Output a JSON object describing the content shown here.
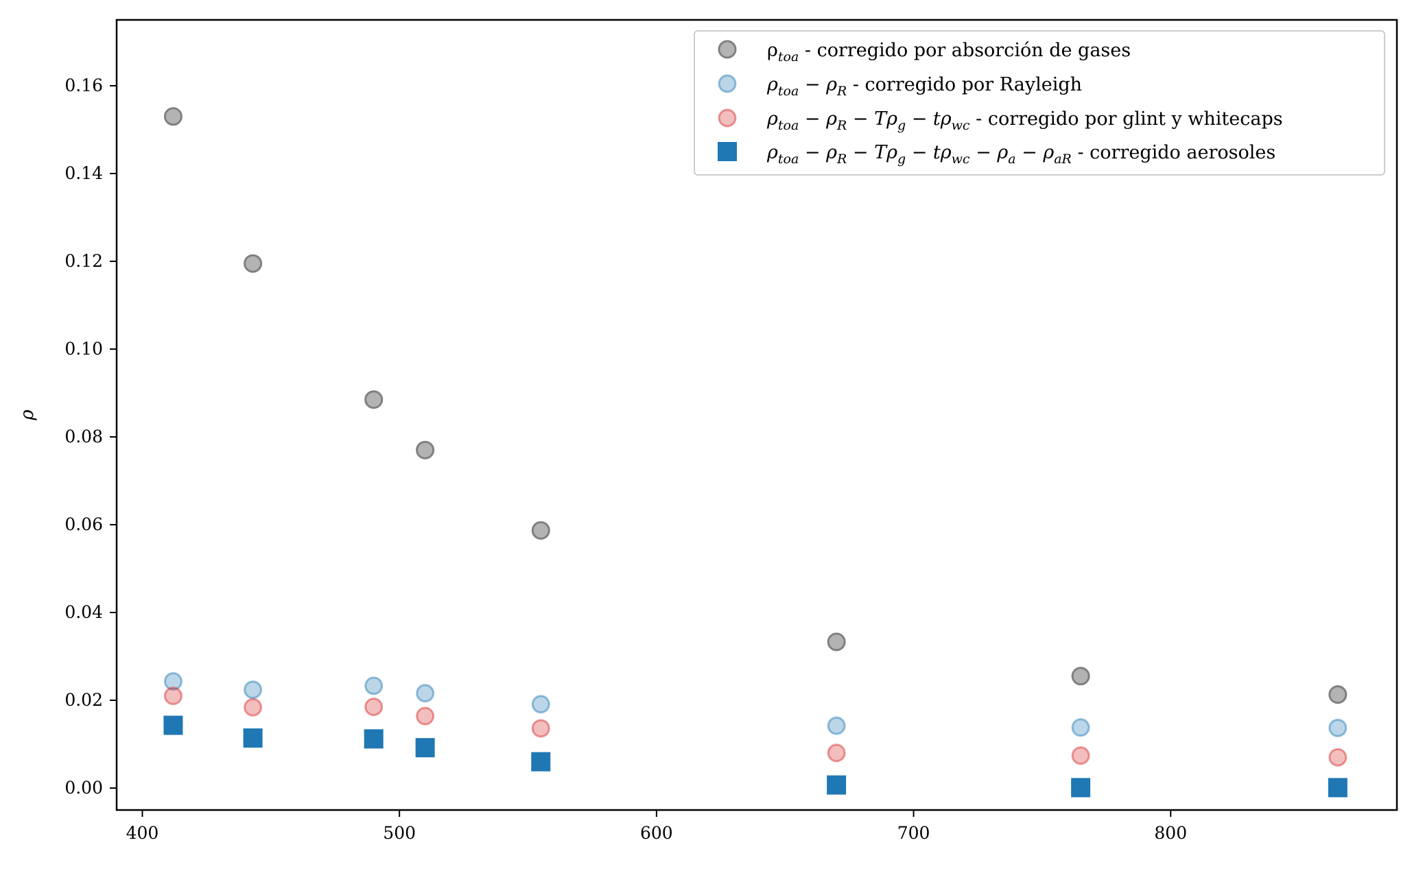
{
  "chart_data": {
    "type": "scatter",
    "title": "",
    "xlabel": "",
    "ylabel": "ρ",
    "xlim": [
      390,
      888
    ],
    "ylim": [
      -0.005,
      0.175
    ],
    "grid": false,
    "legend_position": "top-right",
    "x_ticks": [
      400,
      500,
      600,
      700,
      800
    ],
    "y_ticks": [
      0.0,
      0.02,
      0.04,
      0.06,
      0.08,
      0.1,
      0.12,
      0.14,
      0.16
    ],
    "x": [
      412,
      443,
      490,
      510,
      555,
      670,
      765,
      865
    ],
    "series": [
      {
        "name": "ρtoa - corregido por absorción de gases",
        "marker": "circle",
        "color": "#808080",
        "values": [
          0.153,
          0.1195,
          0.0885,
          0.077,
          0.0587,
          0.0333,
          0.0255,
          0.0213
        ]
      },
      {
        "name": "ρtoa − ρR - corregido por Rayleigh",
        "marker": "circle",
        "color": "#1f77b4",
        "values": [
          0.0243,
          0.0224,
          0.0233,
          0.0216,
          0.0191,
          0.0142,
          0.0138,
          0.0137
        ]
      },
      {
        "name": "ρtoa − ρR − Tρg − tρwc - corregido por glint y whitecaps",
        "marker": "circle",
        "color": "#d62728",
        "values": [
          0.021,
          0.0184,
          0.0185,
          0.0164,
          0.0136,
          0.008,
          0.0074,
          0.007
        ]
      },
      {
        "name": "ρtoa − ρR − Tρg − tρwc − ρa − ρaR - corregido aerosoles",
        "marker": "square",
        "color": "#1f77b4",
        "values": [
          0.0143,
          0.0114,
          0.0112,
          0.0092,
          0.006,
          0.0007,
          0.0001,
          0.0001
        ]
      }
    ]
  },
  "legend": {
    "entries": [
      {
        "parts": [
          [
            "ρ",
            "",
            false
          ],
          [
            "toa",
            "sub",
            true
          ],
          [
            " - corregido por absorción de gases",
            "",
            false
          ]
        ]
      },
      {
        "parts": [
          [
            "ρ",
            "",
            true
          ],
          [
            "toa",
            "sub",
            true
          ],
          [
            " − ",
            "",
            false
          ],
          [
            "ρ",
            "",
            true
          ],
          [
            "R",
            "sub",
            true
          ],
          [
            " - corregido por Rayleigh",
            "",
            false
          ]
        ]
      },
      {
        "parts": [
          [
            "ρ",
            "",
            true
          ],
          [
            "toa",
            "sub",
            true
          ],
          [
            " − ",
            "",
            false
          ],
          [
            "ρ",
            "",
            true
          ],
          [
            "R",
            "sub",
            true
          ],
          [
            " − ",
            "",
            false
          ],
          [
            "Tρ",
            "",
            true
          ],
          [
            "g",
            "sub",
            true
          ],
          [
            " − ",
            "",
            false
          ],
          [
            "tρ",
            "",
            true
          ],
          [
            "wc",
            "sub",
            true
          ],
          [
            " - corregido por glint y whitecaps",
            "",
            false
          ]
        ]
      },
      {
        "parts": [
          [
            "ρ",
            "",
            true
          ],
          [
            "toa",
            "sub",
            true
          ],
          [
            " − ",
            "",
            false
          ],
          [
            "ρ",
            "",
            true
          ],
          [
            "R",
            "sub",
            true
          ],
          [
            " − ",
            "",
            false
          ],
          [
            "Tρ",
            "",
            true
          ],
          [
            "g",
            "sub",
            true
          ],
          [
            " − ",
            "",
            false
          ],
          [
            "tρ",
            "",
            true
          ],
          [
            "wc",
            "sub",
            true
          ],
          [
            " − ",
            "",
            false
          ],
          [
            "ρ",
            "",
            true
          ],
          [
            "a",
            "sub",
            true
          ],
          [
            " − ",
            "",
            false
          ],
          [
            "ρ",
            "",
            true
          ],
          [
            "aR",
            "sub",
            true
          ],
          [
            " - corregido aerosoles",
            "",
            false
          ]
        ]
      }
    ]
  }
}
